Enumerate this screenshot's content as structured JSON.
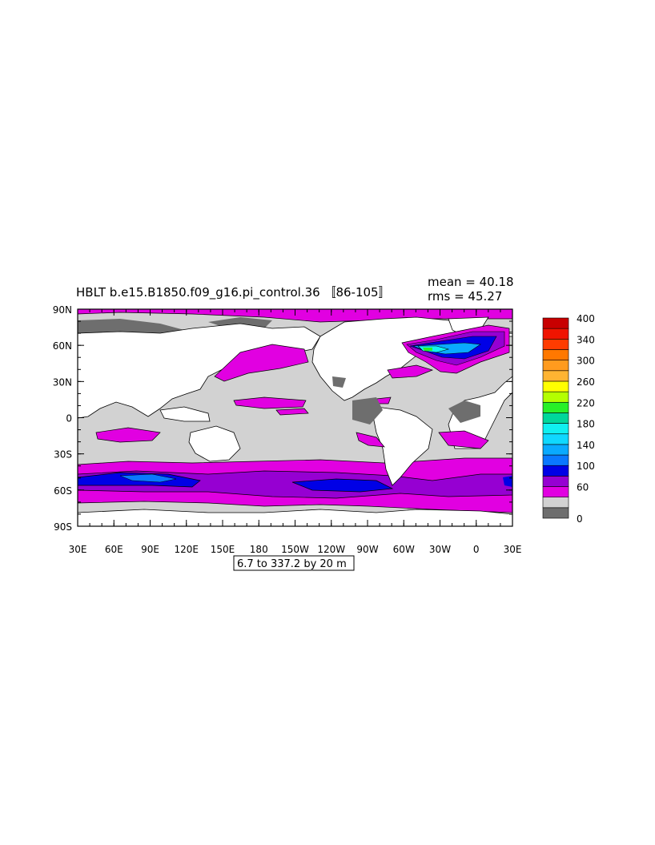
{
  "title": "HBLT b.e15.B1850.f09_g16.pi_control.36 〚86-105〛",
  "stats": {
    "mean": "mean = 40.18",
    "rms": "rms = 45.27"
  },
  "footer": "6.7 to 337.2 by 20 m",
  "lat_labels": [
    "90N",
    "60N",
    "30N",
    "0",
    "30S",
    "60S",
    "90S"
  ],
  "lon_labels": [
    "30E",
    "60E",
    "90E",
    "120E",
    "150E",
    "180",
    "150W",
    "120W",
    "90W",
    "60W",
    "30W",
    "0",
    "30E"
  ],
  "colorbar": {
    "labels": [
      {
        "level": 400,
        "text": "400"
      },
      {
        "level": 340,
        "text": "340"
      },
      {
        "level": 300,
        "text": "300"
      },
      {
        "level": 260,
        "text": "260"
      },
      {
        "level": 220,
        "text": "220"
      },
      {
        "level": 180,
        "text": "180"
      },
      {
        "level": 140,
        "text": "140"
      },
      {
        "level": 100,
        "text": "100"
      },
      {
        "level": 60,
        "text": "60"
      },
      {
        "level": 0,
        "text": "0"
      }
    ],
    "colors": [
      "#6e6e6e",
      "#d2d2d2",
      "#e100e1",
      "#9600d2",
      "#0000e6",
      "#0a78ff",
      "#0aaaff",
      "#10d8ff",
      "#10f0f0",
      "#00d79b",
      "#28f028",
      "#b4ff00",
      "#ffff00",
      "#ffb432",
      "#ff9b1e",
      "#ff7800",
      "#ff3c00",
      "#f01400",
      "#c80000"
    ]
  },
  "map": {
    "field": "HBLT",
    "units": "m",
    "contour_min": 6.7,
    "contour_max": 337.2,
    "contour_interval": 20,
    "fill_colors": {
      "lt_20": "#6e6e6e",
      "20_40": "#d2d2d2",
      "40_60": "#e100e1",
      "60_80": "#9600d2",
      "80_100": "#0000e6",
      "100_120": "#0a78ff",
      "land": "#ffffff"
    }
  }
}
